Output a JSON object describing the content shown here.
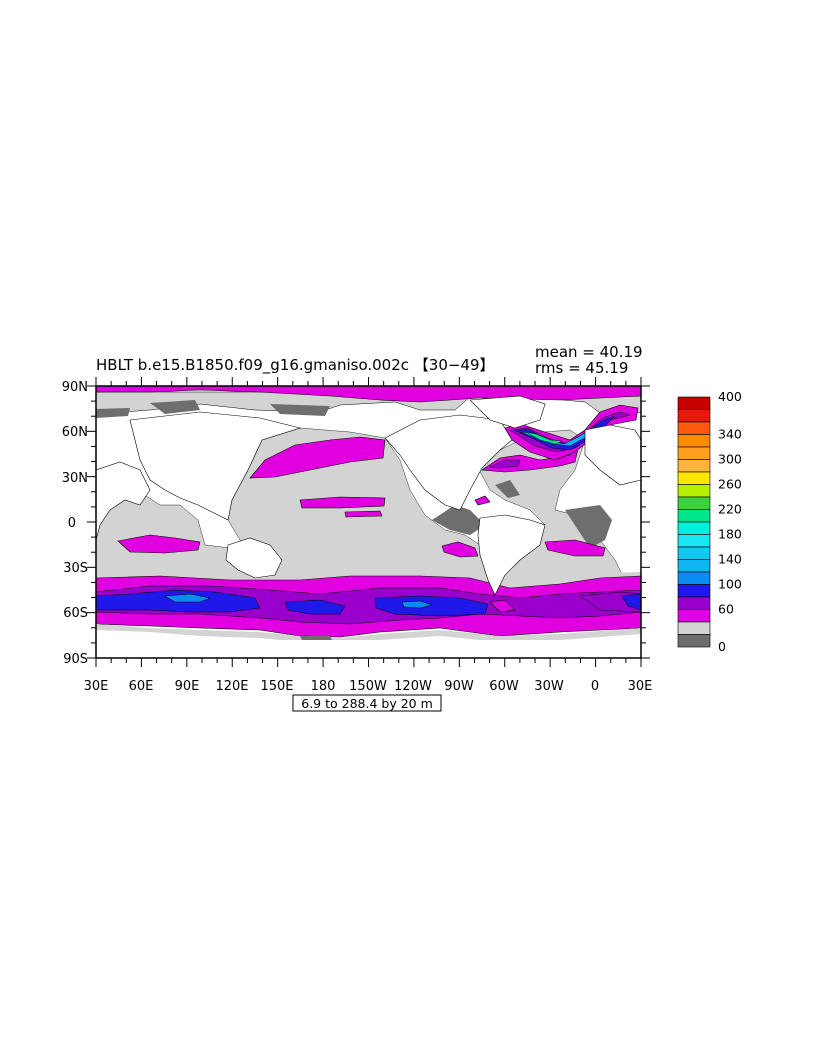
{
  "title": "HBLT b.e15.B1850.f09_g16.gmaniso.002c 【30−49】",
  "stats": {
    "mean": "mean = 40.19",
    "rms": "rms = 45.19"
  },
  "contour_info": "6.9 to 288.4 by 20 m",
  "colors": {
    "land": "#ffffff",
    "bin_0_20": "#6e6e6e",
    "bin_20_40": "#d3d3d3",
    "bin_40_60": "#e000e0",
    "bin_60_80": "#9a00cc",
    "bin_80_100": "#2018e8",
    "bin_100_120": "#0a8cf0",
    "bin_120_140": "#10b4f0",
    "contour": "#000000"
  },
  "chart_data": {
    "type": "heatmap",
    "title": "HBLT b.e15.B1850.f09_g16.gmaniso.002c 【30−49】",
    "field": "HBLT",
    "units": "m",
    "contour_min": 6.9,
    "contour_max": 288.4,
    "contour_interval": 20,
    "mean": 40.19,
    "rms": 45.19,
    "x_ticks": [
      "30E",
      "60E",
      "90E",
      "120E",
      "150E",
      "180",
      "150W",
      "120W",
      "90W",
      "60W",
      "30W",
      "0",
      "30E"
    ],
    "y_ticks": [
      "90N",
      "60N",
      "30N",
      "0",
      "30S",
      "60S",
      "90S"
    ],
    "xlim": [
      30,
      390
    ],
    "ylim": [
      -90,
      90
    ],
    "colorbar": {
      "labels": [
        "400",
        "340",
        "300",
        "260",
        "220",
        "180",
        "140",
        "100",
        "60",
        "0"
      ],
      "bins": [
        {
          "lo": 380,
          "hi": 400,
          "color": "#c80000"
        },
        {
          "lo": 360,
          "hi": 380,
          "color": "#e81a0c"
        },
        {
          "lo": 340,
          "hi": 360,
          "color": "#ff5a10"
        },
        {
          "lo": 320,
          "hi": 340,
          "color": "#ff8c00"
        },
        {
          "lo": 300,
          "hi": 320,
          "color": "#ffa020"
        },
        {
          "lo": 280,
          "hi": 300,
          "color": "#ffb43c"
        },
        {
          "lo": 260,
          "hi": 280,
          "color": "#ffe600"
        },
        {
          "lo": 240,
          "hi": 260,
          "color": "#b4f000"
        },
        {
          "lo": 220,
          "hi": 240,
          "color": "#3cd23c"
        },
        {
          "lo": 200,
          "hi": 220,
          "color": "#00e68c"
        },
        {
          "lo": 180,
          "hi": 200,
          "color": "#00f0dc"
        },
        {
          "lo": 160,
          "hi": 180,
          "color": "#18e6f0"
        },
        {
          "lo": 140,
          "hi": 160,
          "color": "#10c8f0"
        },
        {
          "lo": 120,
          "hi": 140,
          "color": "#10b4f0"
        },
        {
          "lo": 100,
          "hi": 120,
          "color": "#0a8cf0"
        },
        {
          "lo": 80,
          "hi": 100,
          "color": "#2018e8"
        },
        {
          "lo": 60,
          "hi": 80,
          "color": "#9a00cc"
        },
        {
          "lo": 40,
          "hi": 60,
          "color": "#e000e0"
        },
        {
          "lo": 20,
          "hi": 40,
          "color": "#d3d3d3"
        },
        {
          "lo": 0,
          "hi": 20,
          "color": "#6e6e6e"
        }
      ]
    }
  }
}
